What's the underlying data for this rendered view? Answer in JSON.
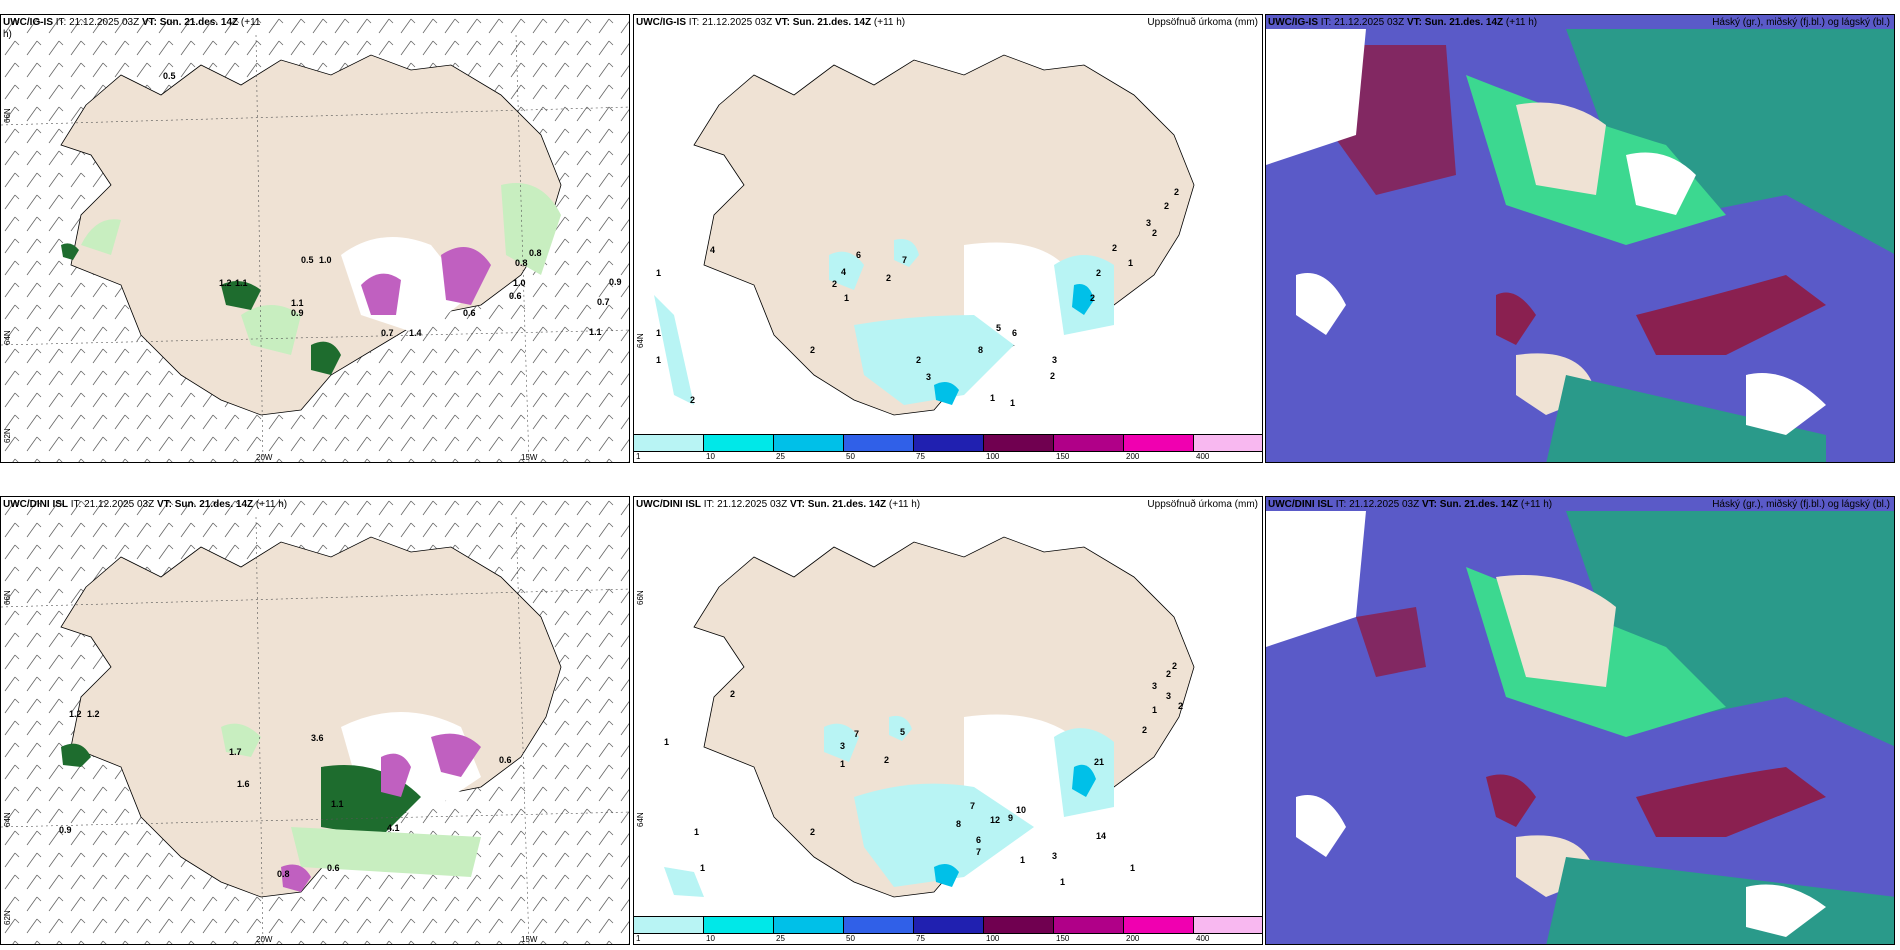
{
  "rows": [
    {
      "id": "row-ig",
      "wind_panel": {
        "title_prefix": "UWC/IG-IS",
        "it_label": "IT:",
        "it_value": "21.12.2025 03Z",
        "vt_label": "VT:",
        "vt_value": "Sun. 21.des. 14Z",
        "lead": "(+11",
        "lead2": "h)",
        "labels": [
          "0.5",
          "0.5",
          "1.0",
          "1.2",
          "1.1",
          "1.1",
          "0.7",
          "1.4",
          "0.6",
          "0.8",
          "1.0",
          "0.6",
          "0.7",
          "0.9",
          "1.1",
          "0.9",
          "0.8"
        ],
        "lat_labels": [
          "66N",
          "64N",
          "62N"
        ],
        "lon_labels": [
          "20W",
          "15W"
        ]
      },
      "precip_panel": {
        "title_prefix": "UWC/IG-IS",
        "it_label": "IT:",
        "it_value": "21.12.2025 03Z",
        "vt_label": "VT:",
        "vt_value": "Sun. 21.des. 14Z",
        "lead": "(+11 h)",
        "right_title": "Uppsöfnuð úrkoma (mm)",
        "labels": [
          "1",
          "1",
          "1",
          "2",
          "2",
          "4",
          "4",
          "6",
          "2",
          "1",
          "7",
          "2",
          "5",
          "6",
          "8",
          "2",
          "3",
          "2",
          "1",
          "1",
          "3",
          "3",
          "2",
          "2",
          "2",
          "1",
          "2",
          "2",
          "2"
        ],
        "lat_label": "64N"
      },
      "cloud_panel": {
        "title_prefix": "UWC/IG-IS",
        "it_label": "IT:",
        "it_value": "21.12.2025 03Z",
        "vt_label": "VT:",
        "vt_value": "Sun. 21.des. 14Z",
        "lead": "(+11 h)",
        "right_title": "Háský (gr.), miðský (fj.bl.) og lágský (bl.)"
      }
    },
    {
      "id": "row-dini",
      "wind_panel": {
        "title_prefix": "UWC/DINI ISL",
        "it_label": "IT:",
        "it_value": "21.12.2025 03Z",
        "vt_label": "VT:",
        "vt_value": "Sun. 21.des. 14Z",
        "lead": "(+11 h)",
        "lead2": "",
        "labels": [
          "1.2",
          "1.2",
          "1.7",
          "1.6",
          "3.6",
          "0.6",
          "0.9",
          "1.1",
          "4.1",
          "0.8",
          "0.6"
        ],
        "lat_labels": [
          "66N",
          "64N",
          "62N"
        ],
        "lon_labels": [
          "20W",
          "15W"
        ]
      },
      "precip_panel": {
        "title_prefix": "UWC/DINI ISL",
        "it_label": "IT:",
        "it_value": "21.12.2025 03Z",
        "vt_label": "VT:",
        "vt_value": "Sun. 21.des. 14Z",
        "lead": "(+11 h)",
        "right_title": "Uppsöfnuð úrkoma (mm)",
        "labels": [
          "1",
          "1",
          "1",
          "2",
          "2",
          "5",
          "3",
          "7",
          "2",
          "1",
          "7",
          "8",
          "12",
          "9",
          "10",
          "6",
          "7",
          "1",
          "3",
          "14",
          "1",
          "1",
          "21",
          "2",
          "3",
          "3",
          "2",
          "2",
          "2",
          "1"
        ],
        "lat_labels": [
          "66N",
          "64N"
        ]
      },
      "cloud_panel": {
        "title_prefix": "UWC/DINI ISL",
        "it_label": "IT:",
        "it_value": "21.12.2025 03Z",
        "vt_label": "VT:",
        "vt_value": "Sun. 21.des. 14Z",
        "lead": "(+11 h)",
        "right_title": "Háský (gr.), miðský (fj.bl.) og lágský (bl.)"
      }
    }
  ],
  "colorbar": {
    "ticks": [
      "1",
      "10",
      "25",
      "50",
      "75",
      "100",
      "150",
      "200",
      "400"
    ],
    "colors": [
      "#b8f4f4",
      "#00e8e8",
      "#00c0e8",
      "#3060e8",
      "#2020b0",
      "#700050",
      "#b00088",
      "#f000b0",
      "#f8b8f0"
    ]
  },
  "colors": {
    "land": "#efe2d4",
    "wind_green_light": "#c8eec0",
    "wind_green_dark": "#1e6c2e",
    "precip_cyan": "#b8f4f4",
    "cloud_low": "#5a5ac8",
    "cloud_mid": "#2a9a8a",
    "cloud_high": "#3cd890",
    "cloud_maroon": "#8a2050"
  }
}
